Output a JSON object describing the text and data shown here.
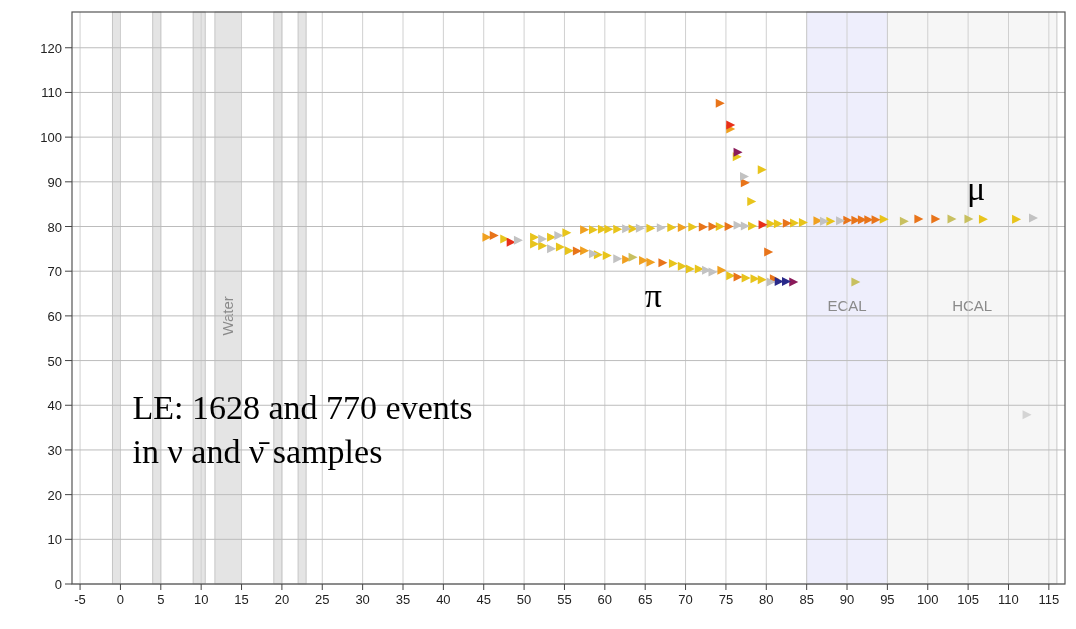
{
  "chart_data": {
    "type": "scatter",
    "xlim": [
      -6,
      117
    ],
    "ylim": [
      0,
      128
    ],
    "xticks": [
      -5,
      0,
      5,
      10,
      15,
      20,
      25,
      30,
      35,
      40,
      45,
      50,
      55,
      60,
      65,
      70,
      75,
      80,
      85,
      90,
      95,
      100,
      105,
      110,
      115
    ],
    "yticks": [
      0,
      10,
      20,
      30,
      40,
      50,
      60,
      70,
      80,
      90,
      100,
      110,
      120
    ],
    "grid": true,
    "marker": "triangle",
    "bands": [
      {
        "axis": "x",
        "from": -1,
        "to": 0,
        "color": "#e4e4e4"
      },
      {
        "axis": "x",
        "from": 4,
        "to": 5,
        "color": "#e4e4e4"
      },
      {
        "axis": "x",
        "from": 9,
        "to": 10.5,
        "color": "#e4e4e4"
      },
      {
        "axis": "x",
        "from": 11.7,
        "to": 15,
        "label": "Water",
        "color": "#e4e4e4"
      },
      {
        "axis": "x",
        "from": 19,
        "to": 20,
        "color": "#e4e4e4"
      },
      {
        "axis": "x",
        "from": 22,
        "to": 23,
        "color": "#e4e4e4"
      },
      {
        "axis": "x",
        "from": 85,
        "to": 95,
        "label": "ECAL",
        "color": "#eeeefc"
      },
      {
        "axis": "x",
        "from": 95,
        "to": 116,
        "label": "HCAL",
        "color": "#f6f6f6"
      }
    ],
    "annotations": [
      "μ",
      "π",
      "LE: 1628 and 770 events\nin ν and ν̄ samples"
    ],
    "series": [
      {
        "color": "#e8c41c",
        "x": [
          55.3,
          58.6,
          59.7,
          60.5,
          61.6,
          63.5,
          65.7,
          68.3,
          70.9,
          74.3,
          78.3,
          80.6,
          81.5,
          83.5,
          84.6,
          88.0,
          94.6,
          106.9,
          111.0,
          47.6,
          51.3,
          53.4,
          51.3,
          52.3,
          54.5,
          55.6,
          59.2,
          60.3,
          68.5,
          69.6,
          70.6,
          71.7,
          75.6,
          77.5,
          78.6,
          79.5,
          76.4,
          79.5,
          78.2
        ],
        "values": [
          78.6,
          79.3,
          79.4,
          79.4,
          79.4,
          79.5,
          79.6,
          79.8,
          79.9,
          80.0,
          80.1,
          80.6,
          80.6,
          80.8,
          80.9,
          81.2,
          81.6,
          81.6,
          81.6,
          77.2,
          77.6,
          77.6,
          76.1,
          75.7,
          75.4,
          74.6,
          73.7,
          73.5,
          71.7,
          71.1,
          70.5,
          70.5,
          69.0,
          68.5,
          68.3,
          68.1,
          95.6,
          92.7,
          85.6
        ]
      },
      {
        "color": "#f0a020",
        "x": [
          57.5,
          69.6,
          86.4,
          45.4,
          57.5,
          62.7,
          64.8,
          65.7,
          74.5,
          75.6
        ],
        "values": [
          79.3,
          79.8,
          81.3,
          77.6,
          74.6,
          72.6,
          72.4,
          72.0,
          70.2,
          101.8
        ]
      },
      {
        "color": "#e8741a",
        "x": [
          72.2,
          73.4,
          75.4,
          82.6,
          90.1,
          91.1,
          91.9,
          92.7,
          93.6,
          98.9,
          101.0,
          46.3,
          56.6,
          67.2,
          76.5,
          81.0,
          74.3,
          77.4,
          80.3
        ],
        "values": [
          79.9,
          80.0,
          80.0,
          80.7,
          81.4,
          81.4,
          81.5,
          81.5,
          81.5,
          81.7,
          81.7,
          78.0,
          74.5,
          71.9,
          68.7,
          68.3,
          107.6,
          89.8,
          74.3
        ]
      },
      {
        "color": "#e8301a",
        "x": [
          79.6,
          48.4,
          75.6
        ],
        "values": [
          80.4,
          76.5,
          102.7
        ]
      },
      {
        "color": "#c2c2c2",
        "x": [
          62.7,
          64.4,
          67.0,
          76.5,
          77.4,
          87.2,
          89.2,
          113.1,
          49.3,
          52.3,
          54.3,
          53.4,
          58.6,
          61.6,
          72.6,
          73.4,
          80.6,
          77.3
        ],
        "values": [
          79.5,
          79.6,
          79.7,
          80.3,
          80.1,
          81.2,
          81.3,
          81.9,
          76.9,
          77.2,
          78.0,
          75.0,
          73.9,
          72.8,
          70.2,
          69.8,
          67.6,
          91.2
        ]
      },
      {
        "color": "#c8c060",
        "x": [
          97.1,
          103.0,
          105.1,
          63.5,
          91.1
        ],
        "values": [
          81.2,
          81.7,
          81.7,
          73.1,
          67.6
        ]
      },
      {
        "color": "#8b1a5a",
        "x": [
          83.4,
          76.5
        ],
        "values": [
          67.6,
          96.6
        ]
      },
      {
        "color": "#2a2a8a",
        "x": [
          81.6,
          82.5
        ],
        "values": [
          67.7,
          67.7
        ]
      },
      {
        "color": "#d4d4d4",
        "x": [
          112.3
        ],
        "values": [
          37.9
        ]
      }
    ]
  }
}
